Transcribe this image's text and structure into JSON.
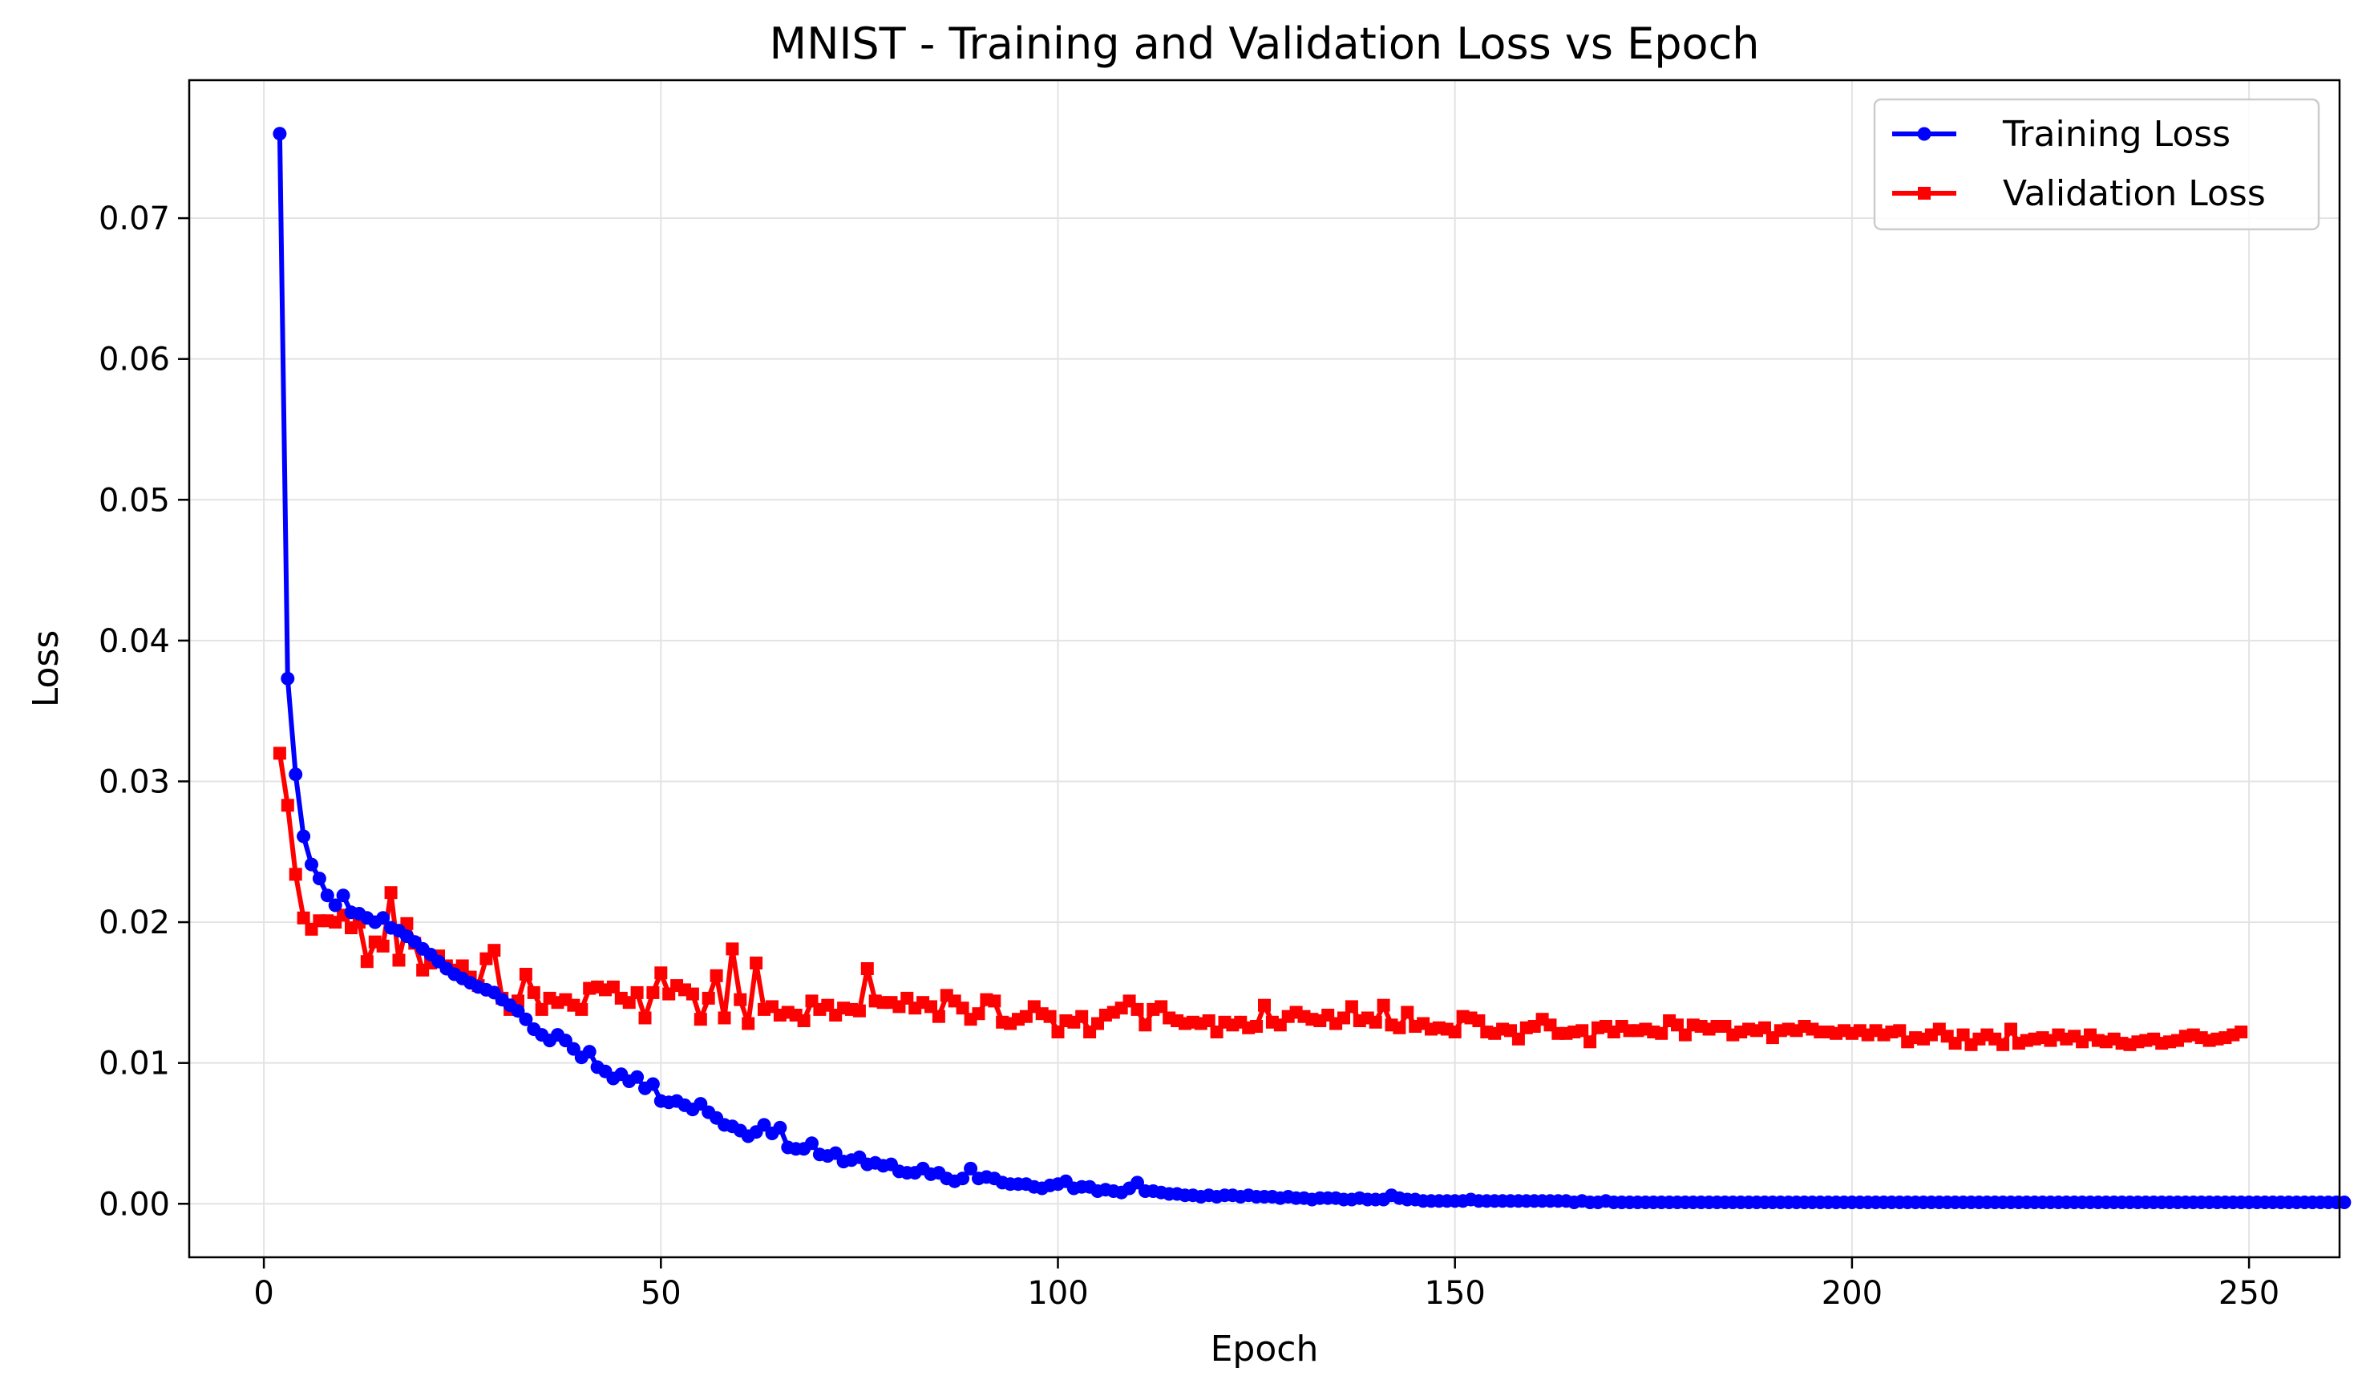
{
  "chart_data": {
    "type": "line",
    "title": "MNIST - Training and Validation Loss vs Epoch",
    "xlabel": "Epoch",
    "ylabel": "Loss",
    "xlim": [
      -9.4,
      261.4
    ],
    "ylim": [
      -0.0038,
      0.0798
    ],
    "x_ticks": [
      0,
      50,
      100,
      150,
      200,
      250
    ],
    "x_tick_labels": [
      "0",
      "50",
      "100",
      "150",
      "200",
      "250"
    ],
    "y_ticks": [
      0.0,
      0.01,
      0.02,
      0.03,
      0.04,
      0.05,
      0.06,
      0.07
    ],
    "y_tick_labels": [
      "0.00",
      "0.01",
      "0.02",
      "0.03",
      "0.04",
      "0.05",
      "0.06",
      "0.07"
    ],
    "grid": true,
    "legend_position": "top-right",
    "x_start": 2,
    "series": [
      {
        "name": "Training Loss",
        "color": "#0000ff",
        "marker": "circle",
        "values": [
          0.076,
          0.0373,
          0.0305,
          0.0261,
          0.0241,
          0.0231,
          0.0219,
          0.0212,
          0.0219,
          0.0207,
          0.0206,
          0.0203,
          0.02,
          0.0203,
          0.0196,
          0.0194,
          0.019,
          0.0186,
          0.0181,
          0.0177,
          0.0172,
          0.0167,
          0.0163,
          0.016,
          0.0157,
          0.0154,
          0.0152,
          0.015,
          0.0145,
          0.0141,
          0.0137,
          0.0131,
          0.0124,
          0.012,
          0.0116,
          0.012,
          0.0116,
          0.011,
          0.0104,
          0.0108,
          0.0097,
          0.0094,
          0.0089,
          0.0092,
          0.0087,
          0.009,
          0.0082,
          0.0085,
          0.0073,
          0.0072,
          0.0073,
          0.007,
          0.0067,
          0.0071,
          0.0065,
          0.0061,
          0.0056,
          0.0055,
          0.0052,
          0.0048,
          0.0051,
          0.0056,
          0.005,
          0.0054,
          0.004,
          0.0039,
          0.0039,
          0.0043,
          0.0035,
          0.0034,
          0.0036,
          0.003,
          0.0031,
          0.0033,
          0.0028,
          0.0029,
          0.0027,
          0.0028,
          0.0023,
          0.0022,
          0.0022,
          0.0025,
          0.0021,
          0.0022,
          0.0018,
          0.0016,
          0.0018,
          0.0025,
          0.0018,
          0.0019,
          0.0018,
          0.0015,
          0.0014,
          0.0014,
          0.0014,
          0.0012,
          0.0011,
          0.0013,
          0.0014,
          0.0016,
          0.0011,
          0.0012,
          0.0012,
          0.0009,
          0.001,
          0.0009,
          0.0008,
          0.0011,
          0.0015,
          0.0009,
          0.0009,
          0.0008,
          0.0007,
          0.0007,
          0.0006,
          0.0006,
          0.0005,
          0.0006,
          0.0005,
          0.0006,
          0.0006,
          0.0005,
          0.0006,
          0.0005,
          0.0005,
          0.0005,
          0.0004,
          0.0005,
          0.0004,
          0.0004,
          0.0003,
          0.0004,
          0.0004,
          0.0004,
          0.0003,
          0.0003,
          0.0004,
          0.0003,
          0.0003,
          0.0003,
          0.0006,
          0.0004,
          0.0003,
          0.0003,
          0.0002,
          0.0002,
          0.0002,
          0.0002,
          0.0002,
          0.0002,
          0.0003,
          0.0002,
          0.0002,
          0.0002,
          0.0002,
          0.0002,
          0.0002,
          0.0002,
          0.0002,
          0.0002,
          0.0002,
          0.0002,
          0.0002,
          0.0001,
          0.0002,
          0.0001,
          0.0001,
          0.0002,
          0.0001,
          0.0001,
          0.0001,
          0.0001,
          0.0001,
          0.0001,
          0.0001,
          0.0001,
          0.0001,
          0.0001,
          0.0001,
          0.0001,
          0.0001,
          0.0001,
          0.0001,
          0.0001,
          0.0001,
          0.0001,
          0.0001,
          0.0001,
          0.0001,
          0.0001,
          0.0001,
          0.0001,
          0.0001,
          0.0001,
          0.0001,
          0.0001,
          0.0001,
          0.0001,
          0.0001,
          0.0001,
          0.0001,
          0.0001,
          0.0001,
          0.0001,
          0.0001,
          0.0001,
          0.0001,
          0.0001,
          0.0001,
          0.0001,
          0.0001,
          0.0001,
          0.0001,
          0.0001,
          0.0001,
          0.0001,
          0.0001,
          0.0001,
          0.0001,
          0.0001,
          0.0001,
          0.0001,
          0.0001,
          0.0001,
          0.0001,
          0.0001,
          0.0001,
          0.0001,
          0.0001,
          0.0001,
          0.0001,
          0.0001,
          0.0001,
          0.0001,
          0.0001,
          0.0001,
          0.0001,
          0.0001,
          0.0001,
          0.0001,
          0.0001,
          0.0001,
          0.0001,
          0.0001,
          0.0001,
          0.0001,
          0.0001,
          0.0001,
          0.0001,
          0.0001,
          0.0001,
          0.0001,
          0.0001,
          0.0001,
          0.0001,
          0.0001,
          0.0001,
          0.0001,
          0.0001,
          0.0001,
          0.0001
        ]
      },
      {
        "name": "Validation Loss",
        "color": "#ff0000",
        "marker": "square",
        "values": [
          0.032,
          0.0283,
          0.0234,
          0.0203,
          0.0195,
          0.0201,
          0.0201,
          0.02,
          0.0205,
          0.0196,
          0.02,
          0.0172,
          0.0186,
          0.0183,
          0.0221,
          0.0173,
          0.0199,
          0.0185,
          0.0166,
          0.0171,
          0.0176,
          0.0169,
          0.0166,
          0.0169,
          0.0161,
          0.0155,
          0.0174,
          0.018,
          0.0146,
          0.0138,
          0.0144,
          0.0163,
          0.015,
          0.0138,
          0.0146,
          0.0143,
          0.0145,
          0.0141,
          0.0138,
          0.0153,
          0.0154,
          0.0152,
          0.0154,
          0.0146,
          0.0143,
          0.015,
          0.0132,
          0.015,
          0.0164,
          0.0149,
          0.0155,
          0.0152,
          0.0149,
          0.0131,
          0.0146,
          0.0162,
          0.0132,
          0.0181,
          0.0145,
          0.0128,
          0.0171,
          0.0138,
          0.014,
          0.0134,
          0.0136,
          0.0134,
          0.013,
          0.0144,
          0.0138,
          0.0141,
          0.0134,
          0.0139,
          0.0138,
          0.0137,
          0.0167,
          0.0144,
          0.0143,
          0.0143,
          0.014,
          0.0146,
          0.0139,
          0.0143,
          0.014,
          0.0133,
          0.0148,
          0.0144,
          0.0139,
          0.0131,
          0.0135,
          0.0145,
          0.0144,
          0.0129,
          0.0128,
          0.0131,
          0.0133,
          0.014,
          0.0135,
          0.0133,
          0.0122,
          0.013,
          0.0129,
          0.0133,
          0.0122,
          0.0128,
          0.0134,
          0.0136,
          0.0139,
          0.0144,
          0.0138,
          0.0127,
          0.0138,
          0.014,
          0.0132,
          0.013,
          0.0128,
          0.0129,
          0.0128,
          0.013,
          0.0122,
          0.0129,
          0.0127,
          0.0129,
          0.0125,
          0.0126,
          0.0141,
          0.0129,
          0.0127,
          0.0133,
          0.0136,
          0.0133,
          0.0131,
          0.013,
          0.0134,
          0.0128,
          0.0132,
          0.014,
          0.013,
          0.0132,
          0.0129,
          0.0141,
          0.0127,
          0.0125,
          0.0136,
          0.0126,
          0.0128,
          0.0124,
          0.0125,
          0.0124,
          0.0122,
          0.0133,
          0.0132,
          0.013,
          0.0122,
          0.0121,
          0.0124,
          0.0123,
          0.0117,
          0.0125,
          0.0126,
          0.0131,
          0.0127,
          0.0121,
          0.0121,
          0.0122,
          0.0123,
          0.0115,
          0.0125,
          0.0126,
          0.0122,
          0.0126,
          0.0123,
          0.0123,
          0.0124,
          0.0122,
          0.0121,
          0.013,
          0.0127,
          0.012,
          0.0127,
          0.0126,
          0.0124,
          0.0126,
          0.0126,
          0.012,
          0.0122,
          0.0124,
          0.0123,
          0.0125,
          0.0118,
          0.0123,
          0.0124,
          0.0123,
          0.0126,
          0.0124,
          0.0122,
          0.0122,
          0.0121,
          0.0123,
          0.0121,
          0.0123,
          0.012,
          0.0123,
          0.012,
          0.0122,
          0.0123,
          0.0115,
          0.0118,
          0.0117,
          0.012,
          0.0124,
          0.0119,
          0.0114,
          0.012,
          0.0113,
          0.0117,
          0.012,
          0.0117,
          0.0113,
          0.0124,
          0.0114,
          0.0116,
          0.0117,
          0.0118,
          0.0116,
          0.012,
          0.0117,
          0.0119,
          0.0115,
          0.012,
          0.0116,
          0.0115,
          0.0117,
          0.0114,
          0.0113,
          0.0115,
          0.0116,
          0.0117,
          0.0114,
          0.0115,
          0.0116,
          0.0119,
          0.012,
          0.0118,
          0.0116,
          0.0117,
          0.0118,
          0.012,
          0.0122
        ]
      }
    ]
  }
}
